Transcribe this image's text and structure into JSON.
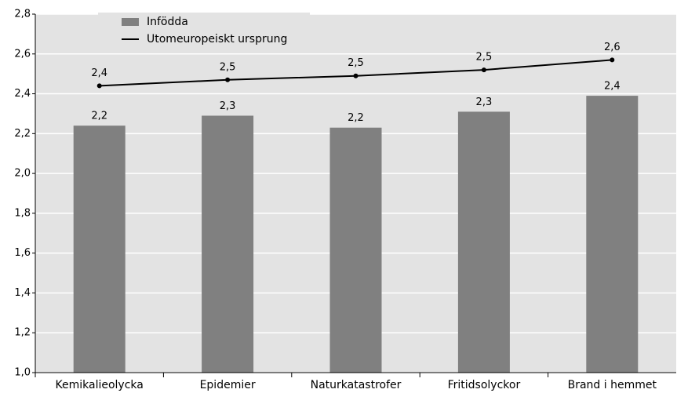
{
  "chart_data": {
    "type": "bar",
    "categories": [
      "Kemikalieolycka",
      "Epidemier",
      "Naturkatastrofer",
      "Fritidsolyckor",
      "Brand i hemmet"
    ],
    "series": [
      {
        "name": "Infödda",
        "type": "bar",
        "color": "#808080",
        "values": [
          2.24,
          2.29,
          2.23,
          2.31,
          2.39
        ],
        "value_labels": [
          "2,2",
          "2,3",
          "2,2",
          "2,3",
          "2,4"
        ]
      },
      {
        "name": "Utomeuropeiskt ursprung",
        "type": "line",
        "color": "#000000",
        "values": [
          2.44,
          2.47,
          2.49,
          2.52,
          2.57
        ],
        "value_labels": [
          "2,4",
          "2,5",
          "2,5",
          "2,5",
          "2,6"
        ]
      }
    ],
    "ylim": [
      1.0,
      2.8
    ],
    "yticks": [
      {
        "value": 1.0,
        "label": "1,0"
      },
      {
        "value": 1.2,
        "label": "1,2"
      },
      {
        "value": 1.4,
        "label": "1,4"
      },
      {
        "value": 1.6,
        "label": "1,6"
      },
      {
        "value": 1.8,
        "label": "1,8"
      },
      {
        "value": 2.0,
        "label": "2,0"
      },
      {
        "value": 2.2,
        "label": "2,2"
      },
      {
        "value": 2.4,
        "label": "2,4"
      },
      {
        "value": 2.6,
        "label": "2,6"
      },
      {
        "value": 2.8,
        "label": "2,8"
      }
    ],
    "grid": true,
    "legend": "top-left"
  }
}
